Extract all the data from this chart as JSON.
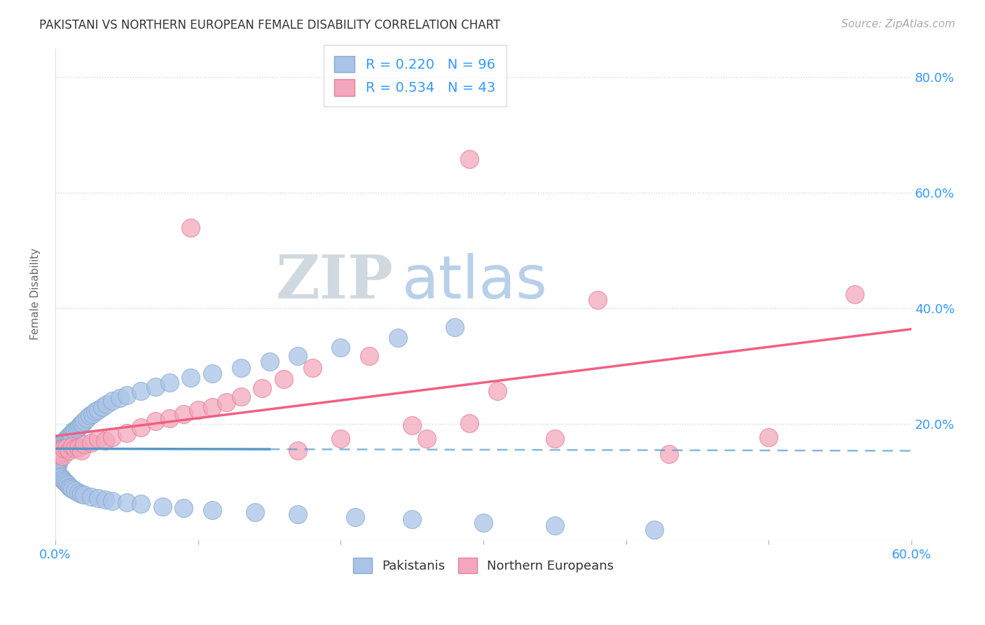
{
  "title": "PAKISTANI VS NORTHERN EUROPEAN FEMALE DISABILITY CORRELATION CHART",
  "source": "Source: ZipAtlas.com",
  "ylabel": "Female Disability",
  "x_min": 0.0,
  "x_max": 0.6,
  "y_min": 0.0,
  "y_max": 0.85,
  "pakistani_color": "#aac4e8",
  "northern_european_color": "#f4a7bc",
  "pakistani_line_color": "#5599cc",
  "northern_european_line_color": "#f06080",
  "background_color": "#ffffff",
  "pakistani_x": [
    0.001,
    0.001,
    0.001,
    0.001,
    0.001,
    0.002,
    0.002,
    0.002,
    0.002,
    0.002,
    0.003,
    0.003,
    0.003,
    0.003,
    0.004,
    0.004,
    0.004,
    0.005,
    0.005,
    0.005,
    0.006,
    0.006,
    0.006,
    0.007,
    0.007,
    0.008,
    0.008,
    0.009,
    0.009,
    0.01,
    0.01,
    0.011,
    0.011,
    0.012,
    0.012,
    0.013,
    0.014,
    0.015,
    0.016,
    0.017,
    0.018,
    0.019,
    0.02,
    0.022,
    0.024,
    0.026,
    0.028,
    0.03,
    0.033,
    0.036,
    0.04,
    0.045,
    0.05,
    0.06,
    0.07,
    0.08,
    0.095,
    0.11,
    0.13,
    0.15,
    0.17,
    0.2,
    0.24,
    0.28,
    0.001,
    0.002,
    0.003,
    0.004,
    0.005,
    0.006,
    0.007,
    0.008,
    0.009,
    0.01,
    0.011,
    0.012,
    0.014,
    0.016,
    0.018,
    0.02,
    0.025,
    0.03,
    0.035,
    0.04,
    0.05,
    0.06,
    0.075,
    0.09,
    0.11,
    0.14,
    0.17,
    0.21,
    0.25,
    0.3,
    0.35,
    0.42
  ],
  "pakistani_y": [
    0.155,
    0.148,
    0.142,
    0.135,
    0.128,
    0.158,
    0.15,
    0.145,
    0.138,
    0.132,
    0.162,
    0.155,
    0.148,
    0.14,
    0.165,
    0.158,
    0.148,
    0.168,
    0.16,
    0.152,
    0.17,
    0.162,
    0.154,
    0.172,
    0.164,
    0.175,
    0.165,
    0.178,
    0.168,
    0.18,
    0.17,
    0.182,
    0.172,
    0.185,
    0.175,
    0.188,
    0.19,
    0.192,
    0.195,
    0.198,
    0.2,
    0.202,
    0.205,
    0.21,
    0.215,
    0.218,
    0.222,
    0.225,
    0.23,
    0.235,
    0.24,
    0.245,
    0.25,
    0.258,
    0.265,
    0.272,
    0.28,
    0.288,
    0.298,
    0.308,
    0.318,
    0.332,
    0.35,
    0.368,
    0.12,
    0.115,
    0.11,
    0.108,
    0.105,
    0.102,
    0.1,
    0.098,
    0.095,
    0.092,
    0.09,
    0.088,
    0.085,
    0.082,
    0.08,
    0.078,
    0.075,
    0.072,
    0.07,
    0.068,
    0.065,
    0.062,
    0.058,
    0.055,
    0.052,
    0.048,
    0.044,
    0.04,
    0.036,
    0.03,
    0.025,
    0.018
  ],
  "northern_european_x": [
    0.001,
    0.002,
    0.003,
    0.004,
    0.005,
    0.006,
    0.008,
    0.01,
    0.012,
    0.014,
    0.016,
    0.018,
    0.02,
    0.025,
    0.03,
    0.035,
    0.04,
    0.05,
    0.06,
    0.07,
    0.08,
    0.09,
    0.1,
    0.11,
    0.12,
    0.13,
    0.145,
    0.16,
    0.18,
    0.2,
    0.22,
    0.25,
    0.29,
    0.31,
    0.35,
    0.29,
    0.43,
    0.5,
    0.56,
    0.38,
    0.26,
    0.17,
    0.095
  ],
  "northern_european_y": [
    0.148,
    0.152,
    0.155,
    0.15,
    0.145,
    0.158,
    0.16,
    0.155,
    0.162,
    0.158,
    0.16,
    0.155,
    0.165,
    0.168,
    0.175,
    0.172,
    0.178,
    0.185,
    0.195,
    0.205,
    0.21,
    0.218,
    0.225,
    0.23,
    0.238,
    0.248,
    0.262,
    0.278,
    0.298,
    0.175,
    0.318,
    0.198,
    0.202,
    0.258,
    0.175,
    0.658,
    0.148,
    0.178,
    0.425,
    0.415,
    0.175,
    0.155,
    0.54
  ]
}
